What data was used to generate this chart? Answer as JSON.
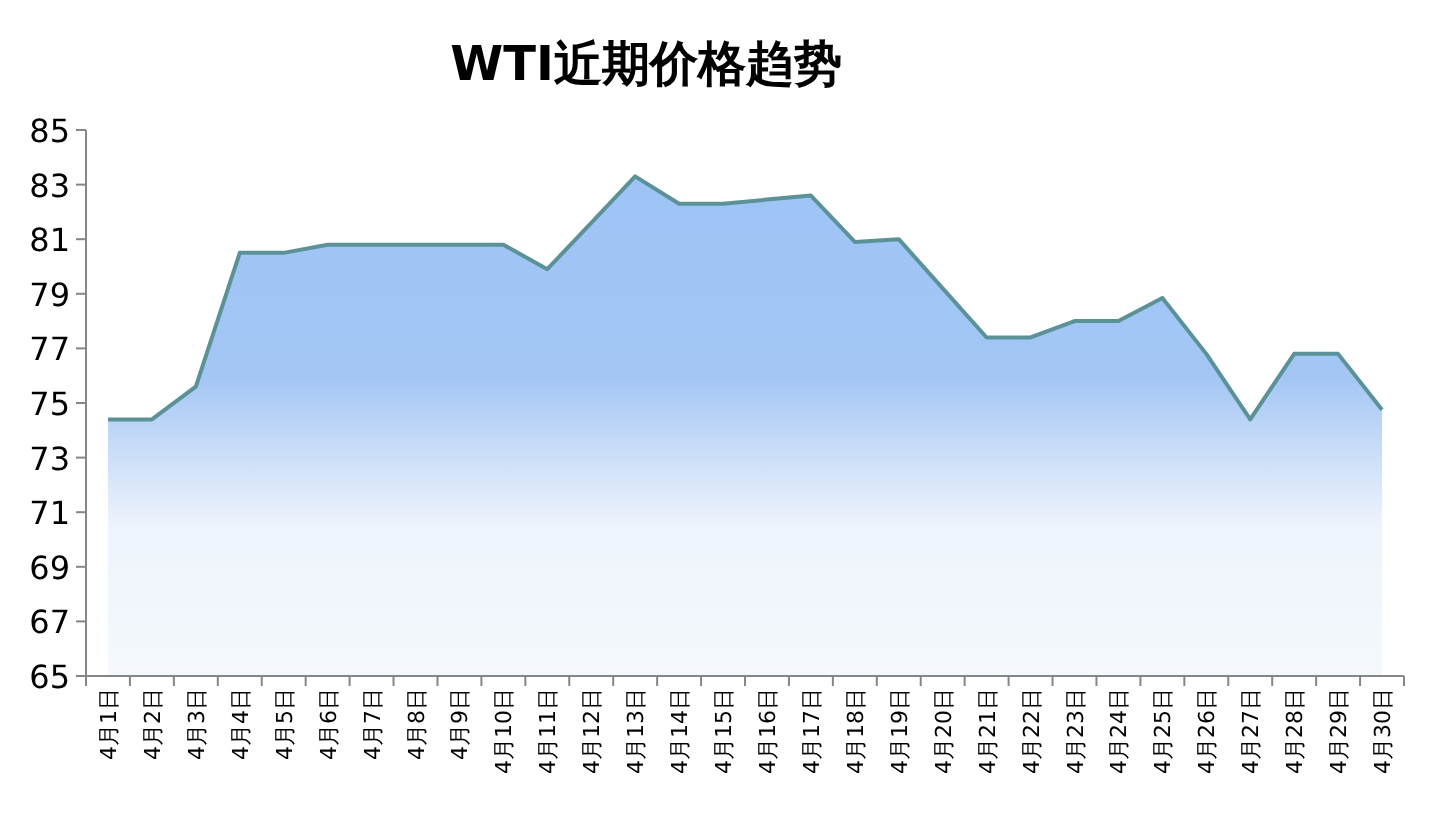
{
  "chart_data": {
    "type": "area",
    "title": "WTI近期价格趋势",
    "categories": [
      "4月1日",
      "4月2日",
      "4月3日",
      "4月4日",
      "4月5日",
      "4月6日",
      "4月7日",
      "4月8日",
      "4月9日",
      "4月10日",
      "4月11日",
      "4月12日",
      "4月13日",
      "4月14日",
      "4月15日",
      "4月16日",
      "4月17日",
      "4月18日",
      "4月19日",
      "4月20日",
      "4月21日",
      "4月22日",
      "4月23日",
      "4月24日",
      "4月25日",
      "4月26日",
      "4月27日",
      "4月28日",
      "4月29日",
      "4月30日"
    ],
    "series": [
      {
        "color": "#5b9298",
        "values": [
          74.4,
          74.4,
          75.6,
          80.5,
          80.5,
          80.8,
          80.8,
          80.8,
          80.8,
          80.8,
          79.9,
          81.6,
          83.3,
          82.3,
          82.3,
          82.45,
          82.6,
          80.9,
          81.0,
          79.2,
          77.4,
          77.4,
          78.0,
          78.0,
          78.85,
          76.8,
          74.4,
          76.8,
          76.8,
          74.75
        ]
      }
    ],
    "ylim": [
      65,
      85
    ],
    "yticks": [
      65,
      67,
      69,
      71,
      73,
      75,
      77,
      79,
      81,
      83,
      85
    ],
    "grid": false
  }
}
